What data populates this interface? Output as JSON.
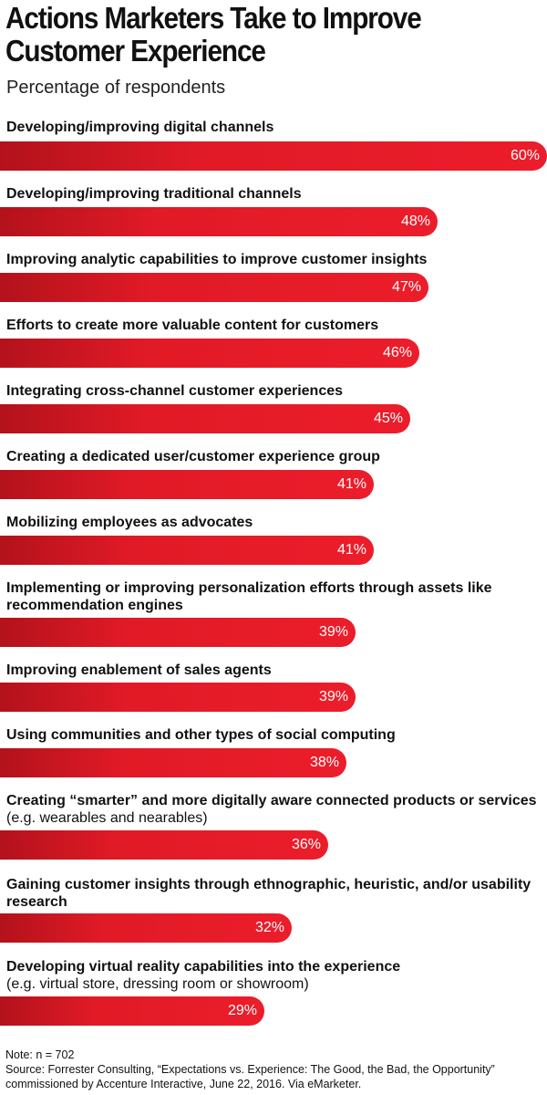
{
  "chart_data": {
    "type": "bar",
    "orientation": "horizontal",
    "title": "Actions Marketers Take to Improve Customer Experience",
    "subtitle": "Percentage of respondents",
    "categories": [
      {
        "main": "Developing/improving digital channels",
        "note": ""
      },
      {
        "main": "Developing/improving traditional channels",
        "note": ""
      },
      {
        "main": "Improving analytic capabilities to improve customer insights",
        "note": ""
      },
      {
        "main": "Efforts to create more valuable content for customers",
        "note": ""
      },
      {
        "main": "Integrating cross-channel customer experiences",
        "note": ""
      },
      {
        "main": "Creating a dedicated user/customer experience group",
        "note": ""
      },
      {
        "main": "Mobilizing employees as advocates",
        "note": ""
      },
      {
        "main": "Implementing or improving personalization efforts through assets like recommendation engines",
        "note": ""
      },
      {
        "main": "Improving enablement of sales agents",
        "note": ""
      },
      {
        "main": "Using communities and other types of social computing",
        "note": ""
      },
      {
        "main": "Creating “smarter” and more digitally aware connected products or services",
        "note": " (e.g. wearables and nearables)"
      },
      {
        "main": "Gaining customer insights through ethnographic, heuristic, and/or usability research",
        "note": ""
      },
      {
        "main": "Developing virtual reality capabilities into the experience",
        "note": "(e.g. virtual store, dressing room or showroom)"
      }
    ],
    "values": [
      60,
      48,
      47,
      46,
      45,
      41,
      41,
      39,
      39,
      38,
      36,
      32,
      29
    ],
    "value_labels": [
      "60%",
      "48%",
      "47%",
      "46%",
      "45%",
      "41%",
      "41%",
      "39%",
      "39%",
      "38%",
      "36%",
      "32%",
      "29%"
    ],
    "xlim": [
      0,
      60
    ],
    "colors": {
      "bar_start": "#b3121c",
      "bar_end": "#ec1d2b",
      "value_text": "#ffffff"
    }
  },
  "footer": {
    "note": "Note: n = 702",
    "source_line1": "Source: Forrester Consulting, “Expectations vs. Experience: The Good, the Bad, the Opportunity”",
    "source_line2": "commissioned by Accenture Interactive, June 22, 2016. Via eMarketer."
  }
}
